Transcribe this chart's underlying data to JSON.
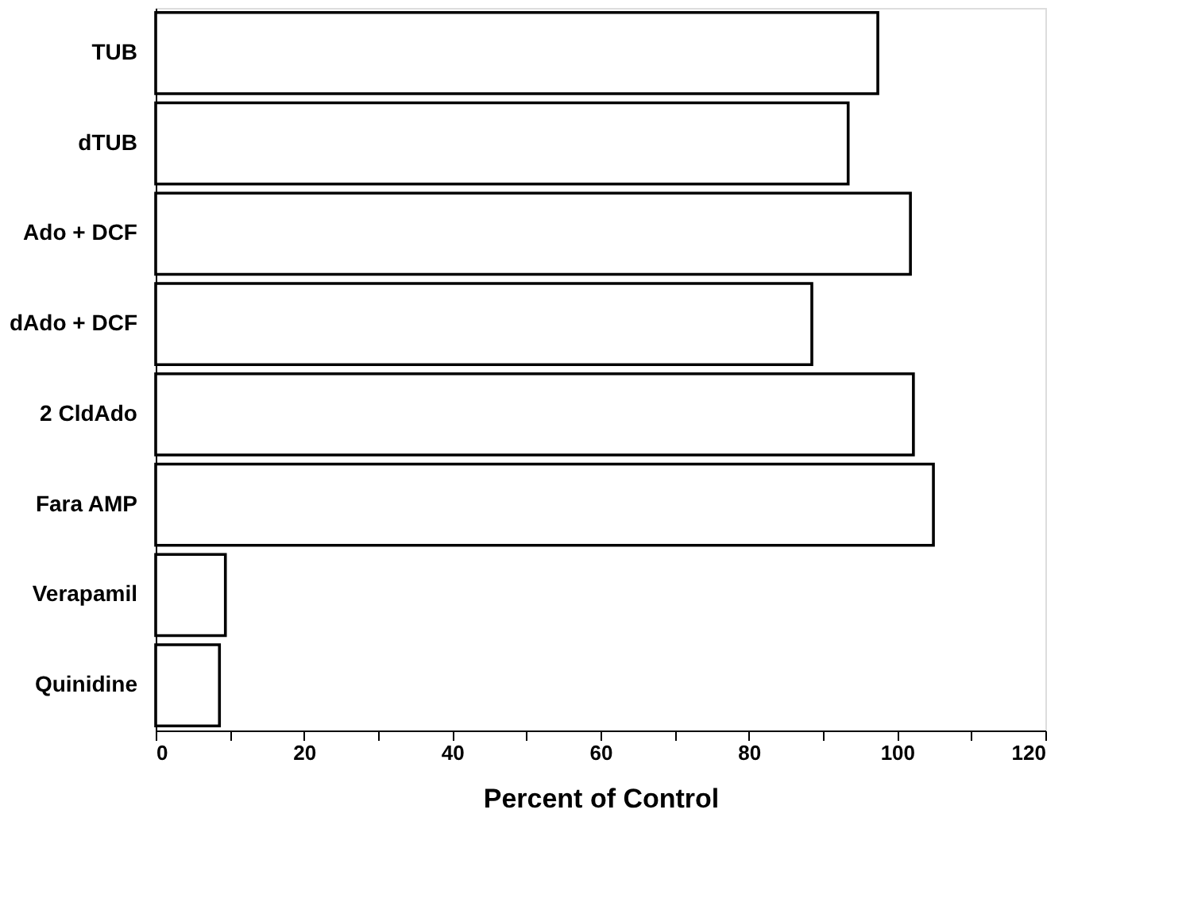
{
  "chart_data": {
    "type": "bar",
    "orientation": "horizontal",
    "xlabel": "Percent of Control",
    "categories": [
      "TUB",
      "dTUB",
      "Ado + DCF",
      "dAdo + DCF",
      "2 CldAdo",
      "Fara AMP",
      "Verapamil",
      "Quinidine"
    ],
    "values": [
      97.4,
      93.4,
      101.8,
      88.5,
      102.2,
      104.9,
      9.4,
      8.6
    ],
    "color": "#ffffff",
    "xlim": [
      0,
      120
    ],
    "xticks": [
      0,
      {
        "value": 10,
        "label": null
      },
      20,
      {
        "value": 30,
        "label": null
      },
      40,
      {
        "value": 50,
        "label": null
      },
      60,
      {
        "value": 70,
        "label": null
      },
      80,
      {
        "value": 90,
        "label": null
      },
      100,
      {
        "value": 110,
        "label": null
      },
      120
    ],
    "grid": false
  }
}
